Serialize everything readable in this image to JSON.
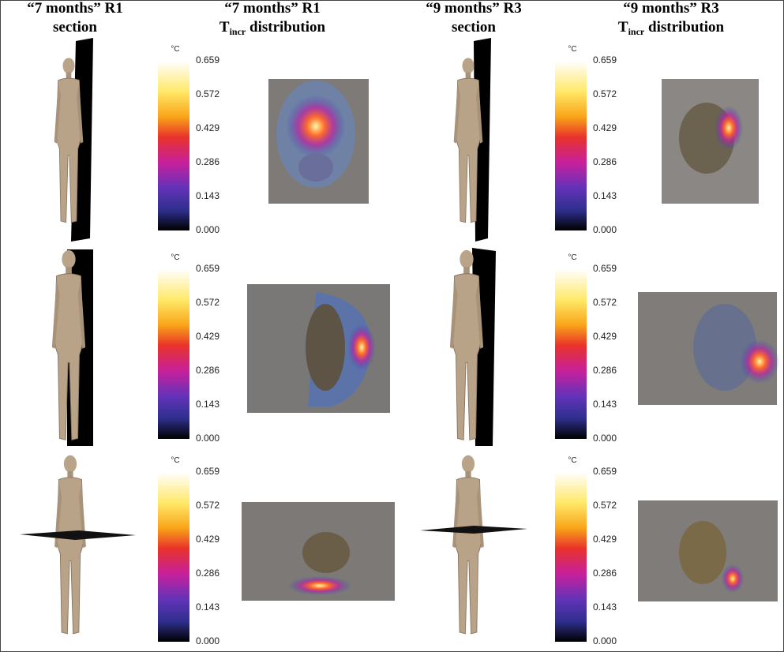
{
  "headers": [
    {
      "title": "“7 months” R1",
      "subtitle": "section"
    },
    {
      "title": "“7 months” R1",
      "symbol": "T",
      "subscript": "incr",
      "subtitle": " distribution"
    },
    {
      "title": "“9 months” R3",
      "subtitle": "section"
    },
    {
      "title": "“9 months” R3",
      "symbol": "T",
      "subscript": "incr",
      "subtitle": " distribution"
    }
  ],
  "colorbar": {
    "unit": "°C",
    "ticks": [
      "0.659",
      "0.572",
      "0.429",
      "0.286",
      "0.143",
      "0.000"
    ]
  }
}
